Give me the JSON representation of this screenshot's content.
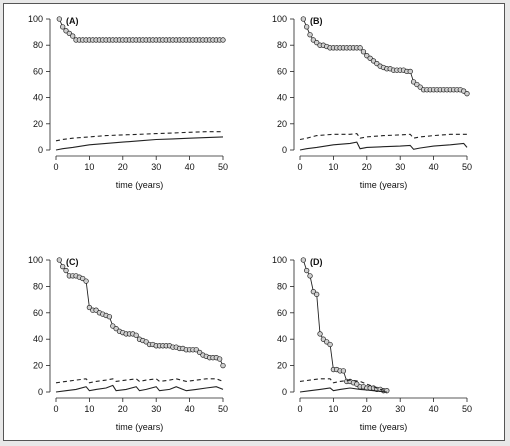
{
  "chart_data": [
    {
      "type": "line",
      "panel_label": "(A)",
      "xlabel": "time (years)",
      "xlim": [
        0,
        50
      ],
      "ylim": [
        0,
        100
      ],
      "xticks": [
        0,
        10,
        20,
        30,
        40,
        50
      ],
      "yticks": [
        0,
        20,
        40,
        60,
        80,
        100
      ],
      "series": [
        {
          "style": "circles",
          "x": [
            1,
            2,
            3,
            4,
            5,
            6,
            7,
            8,
            9,
            10,
            11,
            12,
            13,
            14,
            15,
            16,
            17,
            18,
            19,
            20,
            21,
            22,
            23,
            24,
            25,
            26,
            27,
            28,
            29,
            30,
            31,
            32,
            33,
            34,
            35,
            36,
            37,
            38,
            39,
            40,
            41,
            42,
            43,
            44,
            45,
            46,
            47,
            48,
            49,
            50
          ],
          "y": [
            100,
            94,
            91,
            89,
            87,
            84,
            84,
            84,
            84,
            84,
            84,
            84,
            84,
            84,
            84,
            84,
            84,
            84,
            84,
            84,
            84,
            84,
            84,
            84,
            84,
            84,
            84,
            84,
            84,
            84,
            84,
            84,
            84,
            84,
            84,
            84,
            84,
            84,
            84,
            84,
            84,
            84,
            84,
            84,
            84,
            84,
            84,
            84,
            84,
            84
          ]
        },
        {
          "style": "dashed",
          "x": [
            0,
            2,
            5,
            10,
            15,
            20,
            25,
            30,
            35,
            40,
            45,
            50
          ],
          "y": [
            7,
            8,
            9,
            10,
            11,
            11.5,
            12,
            12.5,
            13,
            13.5,
            14,
            14
          ]
        },
        {
          "style": "solid",
          "x": [
            0,
            2,
            5,
            10,
            15,
            20,
            25,
            30,
            35,
            40,
            45,
            50
          ],
          "y": [
            0,
            1,
            2,
            4,
            5,
            6,
            7,
            8,
            8.5,
            9,
            9.5,
            10
          ]
        }
      ]
    },
    {
      "type": "line",
      "panel_label": "(B)",
      "xlabel": "time (years)",
      "xlim": [
        0,
        50
      ],
      "ylim": [
        0,
        100
      ],
      "xticks": [
        0,
        10,
        20,
        30,
        40,
        50
      ],
      "yticks": [
        0,
        20,
        40,
        60,
        80,
        100
      ],
      "series": [
        {
          "style": "circles",
          "x": [
            1,
            2,
            3,
            4,
            5,
            6,
            7,
            8,
            9,
            10,
            11,
            12,
            13,
            14,
            15,
            16,
            17,
            18,
            19,
            20,
            21,
            22,
            23,
            24,
            25,
            26,
            27,
            28,
            29,
            30,
            31,
            32,
            33,
            34,
            35,
            36,
            37,
            38,
            39,
            40,
            41,
            42,
            43,
            44,
            45,
            46,
            47,
            48,
            49,
            50
          ],
          "y": [
            100,
            94,
            88,
            84,
            82,
            80,
            80,
            79,
            78,
            78,
            78,
            78,
            78,
            78,
            78,
            78,
            78,
            78,
            75,
            72,
            70,
            68,
            66,
            64,
            63,
            62,
            62,
            61,
            61,
            61,
            61,
            60,
            60,
            52,
            50,
            48,
            46,
            46,
            46,
            46,
            46,
            46,
            46,
            46,
            46,
            46,
            46,
            46,
            45,
            43
          ]
        },
        {
          "style": "dashed",
          "x": [
            0,
            2,
            5,
            10,
            15,
            17,
            18,
            20,
            25,
            30,
            33,
            34,
            36,
            40,
            45,
            50
          ],
          "y": [
            8,
            9,
            11,
            12,
            12,
            12.5,
            9,
            10,
            11,
            11.5,
            12,
            9,
            10,
            11,
            12,
            12
          ]
        },
        {
          "style": "solid",
          "x": [
            0,
            2,
            5,
            10,
            15,
            17,
            18,
            20,
            25,
            30,
            33,
            34,
            36,
            40,
            45,
            49,
            50
          ],
          "y": [
            0,
            1,
            2,
            4,
            5,
            6,
            1,
            2,
            2.5,
            3,
            3.5,
            0.5,
            1.5,
            3,
            4,
            5,
            2
          ]
        }
      ]
    },
    {
      "type": "line",
      "panel_label": "(C)",
      "xlabel": "time (years)",
      "xlim": [
        0,
        50
      ],
      "ylim": [
        0,
        100
      ],
      "xticks": [
        0,
        10,
        20,
        30,
        40,
        50
      ],
      "yticks": [
        0,
        20,
        40,
        60,
        80,
        100
      ],
      "series": [
        {
          "style": "circles",
          "x": [
            1,
            2,
            3,
            4,
            5,
            6,
            7,
            8,
            9,
            10,
            11,
            12,
            13,
            14,
            15,
            16,
            17,
            18,
            19,
            20,
            21,
            22,
            23,
            24,
            25,
            26,
            27,
            28,
            29,
            30,
            31,
            32,
            33,
            34,
            35,
            36,
            37,
            38,
            39,
            40,
            41,
            42,
            43,
            44,
            45,
            46,
            47,
            48,
            49,
            50
          ],
          "y": [
            100,
            95,
            92,
            88,
            88,
            88,
            87,
            86,
            84,
            64,
            62,
            62,
            60,
            59,
            58,
            57,
            50,
            48,
            46,
            45,
            44,
            44,
            44,
            43,
            40,
            39,
            38,
            36,
            36,
            35,
            35,
            35,
            35,
            35,
            34,
            34,
            33,
            33,
            32,
            32,
            32,
            32,
            30,
            28,
            27,
            26,
            26,
            26,
            25,
            20
          ]
        },
        {
          "style": "dashed",
          "x": [
            0,
            3,
            6,
            9,
            10,
            12,
            15,
            17,
            18,
            21,
            24,
            25,
            27,
            30,
            31,
            34,
            36,
            39,
            42,
            45,
            48,
            50
          ],
          "y": [
            7,
            8,
            9,
            10,
            7,
            8,
            9,
            10,
            8,
            9,
            10,
            8,
            9,
            10,
            8,
            9,
            10,
            8,
            9,
            10,
            10,
            8
          ]
        },
        {
          "style": "solid",
          "x": [
            0,
            3,
            6,
            9,
            10,
            12,
            15,
            17,
            18,
            21,
            24,
            25,
            27,
            30,
            31,
            34,
            36,
            39,
            42,
            45,
            48,
            50
          ],
          "y": [
            0,
            1,
            2,
            4,
            1,
            2,
            3,
            5,
            1,
            2,
            4,
            1,
            2,
            4,
            1,
            2,
            4,
            1,
            2,
            3,
            4,
            2
          ]
        }
      ]
    },
    {
      "type": "line",
      "panel_label": "(D)",
      "xlabel": "time (years)",
      "xlim": [
        0,
        50
      ],
      "ylim": [
        0,
        100
      ],
      "xticks": [
        0,
        10,
        20,
        30,
        40,
        50
      ],
      "yticks": [
        0,
        20,
        40,
        60,
        80,
        100
      ],
      "series": [
        {
          "style": "circles",
          "x": [
            1,
            2,
            3,
            4,
            5,
            6,
            7,
            8,
            9,
            10,
            11,
            12,
            13,
            14,
            15,
            16,
            17,
            18,
            19,
            20,
            21,
            22,
            23,
            24,
            25,
            26
          ],
          "y": [
            100,
            92,
            88,
            76,
            74,
            44,
            40,
            38,
            36,
            17,
            17,
            16,
            16,
            8,
            8,
            7,
            6,
            4,
            4,
            3,
            3,
            3,
            2,
            2,
            1,
            1
          ]
        },
        {
          "style": "dashed",
          "x": [
            0,
            3,
            6,
            9,
            10,
            12,
            15,
            18,
            20,
            22,
            24,
            26
          ],
          "y": [
            8,
            9,
            10,
            10,
            7,
            8,
            9,
            8,
            6,
            4,
            2,
            1
          ]
        },
        {
          "style": "solid",
          "x": [
            0,
            3,
            6,
            9,
            10,
            12,
            15,
            18,
            20,
            22,
            24,
            26
          ],
          "y": [
            0,
            1,
            2,
            3,
            1,
            2,
            3,
            2,
            1.5,
            1,
            0.5,
            0
          ]
        }
      ]
    }
  ]
}
